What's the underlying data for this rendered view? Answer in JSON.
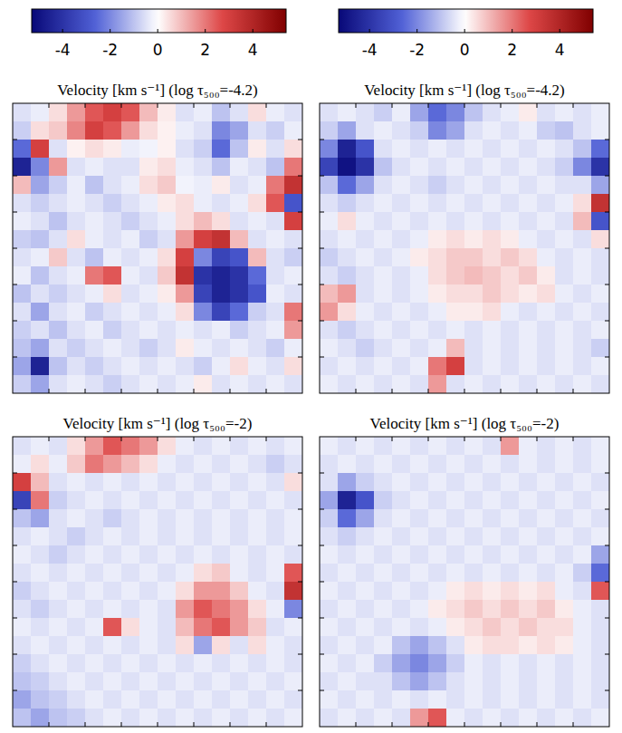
{
  "chart_data": [
    {
      "type": "heatmap",
      "title": "Velocity [km s⁻¹] (log τ₅₀₀=-4.2)",
      "xlim": [
        0,
        16
      ],
      "ylim": [
        0,
        16
      ],
      "xticks": [
        2,
        4,
        6,
        8,
        10,
        12,
        14
      ],
      "yticks": [
        2,
        4,
        6,
        8,
        10,
        12,
        14
      ],
      "tick_labels": false,
      "color_range": [
        -5.3,
        5.4
      ],
      "colorbar_ticks": [
        -4,
        -2,
        0,
        2,
        4
      ],
      "cells": [
        [
          -0.5,
          -0.3,
          0.5,
          1.5,
          2.5,
          3,
          2.5,
          1,
          0.3,
          -0.5,
          -0.3,
          -1,
          -0.5,
          0.5,
          -0.3,
          -0.5
        ],
        [
          -0.8,
          0.5,
          0.8,
          1.8,
          3,
          2.5,
          1.5,
          0.5,
          0.2,
          -0.3,
          -0.5,
          -2,
          -1.5,
          -0.5,
          -0.8,
          -0.3
        ],
        [
          -2.5,
          3,
          -0.5,
          0.2,
          0.5,
          0.3,
          -0.3,
          -0.2,
          0.2,
          -0.5,
          -0.8,
          -2.5,
          -1,
          0.3,
          -0.5,
          0.5
        ],
        [
          -4.5,
          -2,
          1.5,
          -0.5,
          -0.3,
          -0.5,
          -0.5,
          0.3,
          0.5,
          -0.3,
          -0.5,
          -1,
          -0.3,
          -0.5,
          -1,
          2
        ],
        [
          1,
          -1.5,
          -0.8,
          -0.3,
          -1,
          -0.5,
          -0.3,
          0.5,
          0.8,
          -0.2,
          -0.3,
          0.3,
          -0.5,
          -0.3,
          2,
          3.5
        ],
        [
          -0.5,
          -0.8,
          -0.5,
          -0.3,
          -0.5,
          -0.8,
          -0.5,
          -0.3,
          0.3,
          0.5,
          -0.3,
          -0.5,
          -0.3,
          0.5,
          2.5,
          -3
        ],
        [
          -0.3,
          -0.5,
          -1,
          -0.5,
          -0.3,
          -0.5,
          -0.8,
          -0.5,
          -0.3,
          0.5,
          1,
          0.5,
          -0.5,
          -0.3,
          -0.5,
          3
        ],
        [
          -0.8,
          -1,
          -0.5,
          0.5,
          -0.3,
          -0.5,
          -0.3,
          -0.8,
          -0.5,
          1.5,
          3,
          3.5,
          1,
          -0.5,
          -0.3,
          -0.5
        ],
        [
          -0.5,
          -0.3,
          0.8,
          -0.5,
          -1,
          -0.3,
          -0.5,
          -0.3,
          0.5,
          3,
          -2,
          -3.5,
          -3,
          1,
          -0.5,
          -0.8
        ],
        [
          -0.3,
          -1,
          -0.5,
          -0.3,
          2,
          2.5,
          -0.3,
          -0.5,
          0.8,
          3.5,
          -4,
          -4.5,
          -4,
          -2.5,
          -0.5,
          -0.3
        ],
        [
          -1,
          -0.5,
          -0.8,
          -0.5,
          -0.3,
          0.5,
          -0.5,
          -0.3,
          0.3,
          1.5,
          -3.5,
          -4.5,
          -4,
          -3,
          -0.3,
          -0.5
        ],
        [
          -0.5,
          -1.5,
          -0.5,
          -0.3,
          -0.8,
          -0.5,
          -0.3,
          -0.5,
          -0.3,
          0.5,
          -2,
          -3.5,
          -2.5,
          -0.8,
          -0.5,
          2
        ],
        [
          -0.8,
          -0.5,
          -1,
          -0.5,
          -0.3,
          -0.8,
          -0.5,
          -0.3,
          -0.5,
          -0.3,
          -0.5,
          -0.3,
          -0.8,
          -0.5,
          -0.3,
          1.5
        ],
        [
          -1,
          -1.5,
          -0.5,
          -0.8,
          -0.5,
          -0.3,
          -0.5,
          -0.8,
          -0.5,
          0.3,
          -0.3,
          -0.5,
          -0.3,
          -0.5,
          -0.8,
          -0.3
        ],
        [
          -1.5,
          -4.5,
          -1,
          -0.5,
          -0.8,
          -0.5,
          -0.3,
          -0.5,
          -0.3,
          -0.5,
          -0.8,
          -0.3,
          0.5,
          -0.3,
          -0.5,
          0.5
        ],
        [
          -0.8,
          -1.5,
          -0.5,
          -0.3,
          -0.5,
          -0.8,
          -0.5,
          -0.3,
          -0.5,
          -0.3,
          0.3,
          -0.5,
          -0.3,
          -0.5,
          -0.3,
          -0.5
        ]
      ]
    },
    {
      "type": "heatmap",
      "title": "Velocity [km s⁻¹] (log τ₅₀₀=-4.2)",
      "xlim": [
        0,
        16
      ],
      "ylim": [
        0,
        16
      ],
      "xticks": [
        2,
        4,
        6,
        8,
        10,
        12,
        14
      ],
      "yticks": [
        2,
        4,
        6,
        8,
        10,
        12,
        14
      ],
      "tick_labels": false,
      "color_range": [
        -5.3,
        5.4
      ],
      "colorbar_ticks": [
        -4,
        -2,
        0,
        2,
        4
      ],
      "cells": [
        [
          -0.5,
          -0.3,
          -0.5,
          -0.8,
          -0.3,
          -1.5,
          -2.5,
          -2,
          -1,
          -0.5,
          -0.3,
          0.3,
          -0.5,
          -0.3,
          -0.5,
          -0.3
        ],
        [
          -0.8,
          -1.5,
          -0.5,
          -0.3,
          -0.5,
          -0.8,
          -2,
          -1.5,
          -0.5,
          -0.3,
          -0.5,
          -0.3,
          -0.8,
          -1,
          -0.5,
          -0.3
        ],
        [
          -2,
          -4.5,
          -3,
          -0.5,
          -0.3,
          -0.5,
          -0.3,
          -0.5,
          -0.3,
          -0.5,
          -0.3,
          -0.5,
          -0.3,
          -0.5,
          -1,
          -2.5
        ],
        [
          -3.5,
          -5,
          -4,
          -1,
          -0.5,
          -0.3,
          -0.5,
          -0.3,
          -0.5,
          -0.3,
          -0.5,
          -0.3,
          -0.5,
          -0.8,
          -2,
          -4
        ],
        [
          -1,
          -2.5,
          -1.5,
          -0.5,
          -0.3,
          -0.5,
          -0.8,
          -0.5,
          -0.3,
          -0.5,
          -0.3,
          -0.5,
          -0.3,
          -0.5,
          -0.5,
          -1.5
        ],
        [
          -0.5,
          -0.8,
          -0.5,
          -0.3,
          -0.5,
          -0.3,
          -0.5,
          -0.3,
          -0.5,
          -0.3,
          -0.5,
          -0.3,
          -0.5,
          -0.3,
          0.5,
          3.5
        ],
        [
          -0.3,
          0.5,
          -0.3,
          -0.5,
          -0.3,
          -0.5,
          -0.3,
          -0.5,
          -0.3,
          -0.5,
          -0.3,
          -0.5,
          -0.3,
          -0.5,
          1,
          -3
        ],
        [
          -0.5,
          -0.3,
          -0.5,
          -0.3,
          -0.5,
          -0.3,
          0.3,
          0.5,
          0.3,
          0.5,
          0.3,
          -0.3,
          -0.5,
          -0.3,
          -0.5,
          0.5
        ],
        [
          -0.8,
          -0.5,
          -0.3,
          -0.5,
          -0.3,
          0.3,
          0.5,
          0.8,
          0.8,
          0.5,
          0.8,
          0.5,
          -0.3,
          -0.5,
          -0.3,
          -0.5
        ],
        [
          -0.5,
          -0.8,
          -0.5,
          -0.3,
          -0.5,
          -0.3,
          0.5,
          0.8,
          1,
          0.8,
          0.5,
          0.8,
          0.3,
          -0.5,
          -0.3,
          -0.5
        ],
        [
          1,
          1.5,
          -0.5,
          -0.3,
          -0.5,
          -0.3,
          0.3,
          0.5,
          0.5,
          0.8,
          0.5,
          0.3,
          0.5,
          -0.3,
          -0.5,
          -0.3
        ],
        [
          1.5,
          0.5,
          -0.3,
          -0.5,
          -0.3,
          -0.5,
          -0.3,
          0.3,
          0.3,
          0.5,
          -0.3,
          -0.5,
          -0.3,
          -0.5,
          -0.3,
          -0.5
        ],
        [
          -0.5,
          -0.8,
          -0.5,
          -0.3,
          -0.5,
          -0.3,
          -0.5,
          -0.3,
          -0.5,
          -0.3,
          -0.5,
          -0.3,
          -0.5,
          -0.3,
          -0.5,
          -0.3
        ],
        [
          -0.3,
          -0.5,
          -0.8,
          -0.5,
          -0.3,
          -0.5,
          -0.3,
          1,
          -0.5,
          -0.3,
          -0.5,
          -0.3,
          -0.5,
          -0.3,
          -0.5,
          -0.8
        ],
        [
          -0.5,
          -0.3,
          -0.5,
          -0.3,
          -0.5,
          -0.3,
          2,
          3,
          -0.5,
          -0.3,
          -0.5,
          -0.3,
          -0.5,
          -0.3,
          -0.5,
          -0.3
        ],
        [
          -0.3,
          -0.5,
          -0.3,
          -0.5,
          -0.3,
          -0.5,
          1.5,
          -0.5,
          -0.3,
          -0.5,
          -0.3,
          -0.5,
          -0.3,
          -0.5,
          -0.3,
          -0.5
        ]
      ]
    },
    {
      "type": "heatmap",
      "title": "Velocity [km s⁻¹] (log τ₅₀₀=-2)",
      "xlim": [
        0,
        16
      ],
      "ylim": [
        0,
        16
      ],
      "xticks": [
        2,
        4,
        6,
        8,
        10,
        12,
        14
      ],
      "yticks": [
        2,
        4,
        6,
        8,
        10,
        12,
        14
      ],
      "tick_labels": false,
      "color_range": [
        -5.3,
        5.4
      ],
      "cells": [
        [
          -0.5,
          -0.3,
          -0.5,
          0.5,
          1.5,
          2.5,
          2,
          1.5,
          0.5,
          -0.3,
          -0.5,
          -0.3,
          -0.5,
          -0.3,
          -0.5,
          -0.3
        ],
        [
          -0.3,
          0.5,
          -0.3,
          0.8,
          2,
          1.5,
          1,
          0.5,
          -0.3,
          -0.5,
          -0.3,
          -0.5,
          -0.3,
          -0.5,
          -0.8,
          -0.5
        ],
        [
          3,
          1,
          -0.5,
          -0.3,
          -0.5,
          -0.3,
          -0.5,
          -0.3,
          -0.5,
          -0.3,
          -0.5,
          -0.3,
          -0.5,
          -0.3,
          -0.5,
          0.5
        ],
        [
          -3.5,
          2,
          -0.8,
          -0.5,
          -0.3,
          -0.5,
          -0.3,
          -0.5,
          -0.3,
          -0.5,
          -0.3,
          -0.5,
          -0.3,
          -0.5,
          -0.3,
          -0.5
        ],
        [
          -1,
          -1.5,
          -0.5,
          -0.3,
          -0.5,
          -0.8,
          -0.5,
          -0.3,
          -0.5,
          -0.3,
          -0.5,
          -0.3,
          -0.5,
          -0.3,
          -0.5,
          -0.3
        ],
        [
          -0.5,
          -0.3,
          -0.5,
          -0.8,
          -0.5,
          -0.3,
          -0.5,
          -0.3,
          -0.5,
          -0.3,
          -0.5,
          -0.3,
          -0.5,
          -0.3,
          -0.5,
          -0.3
        ],
        [
          -0.3,
          -0.5,
          -0.8,
          -0.5,
          -0.3,
          -0.5,
          -0.3,
          -0.5,
          -0.3,
          -0.5,
          -0.3,
          -0.5,
          -0.3,
          -0.5,
          -0.3,
          -0.5
        ],
        [
          -0.5,
          -0.3,
          -0.5,
          -0.3,
          -0.5,
          -0.3,
          -0.5,
          -0.3,
          -0.5,
          -0.3,
          0.5,
          0.8,
          -0.3,
          -0.5,
          -0.3,
          2.5
        ],
        [
          -0.8,
          -0.5,
          -0.3,
          -0.5,
          -0.3,
          -0.5,
          -0.3,
          -0.5,
          -0.3,
          0.5,
          1.5,
          1.5,
          0.8,
          -0.3,
          -0.5,
          3.5
        ],
        [
          -0.5,
          -0.8,
          -0.5,
          -0.3,
          -0.5,
          -0.3,
          -0.5,
          -0.3,
          -0.5,
          1.5,
          2.5,
          2,
          1.5,
          0.5,
          -0.3,
          -2
        ],
        [
          -0.3,
          -0.5,
          -0.3,
          -0.5,
          -0.3,
          2.5,
          0.5,
          -0.3,
          -0.5,
          1,
          2,
          2.5,
          1.5,
          0.8,
          -0.5,
          -0.3
        ],
        [
          -0.5,
          -0.3,
          -0.5,
          -0.3,
          -0.5,
          -0.3,
          -0.5,
          -0.3,
          -0.5,
          0.5,
          -1.5,
          0.5,
          -0.5,
          0.5,
          -0.3,
          -0.5
        ],
        [
          -0.8,
          -0.5,
          -0.3,
          -0.5,
          -0.3,
          -0.5,
          -0.3,
          -0.5,
          -0.3,
          -0.5,
          -0.3,
          -0.5,
          -0.3,
          -0.5,
          -0.3,
          -0.5
        ],
        [
          -1,
          -0.8,
          -0.5,
          -0.3,
          -0.5,
          -0.3,
          -0.5,
          -0.3,
          -0.5,
          -0.3,
          -0.5,
          -0.3,
          -0.5,
          -0.3,
          -0.5,
          -0.3
        ],
        [
          -1.5,
          -1,
          -0.8,
          -0.5,
          -0.3,
          -0.5,
          -0.3,
          -0.5,
          -0.3,
          -0.5,
          -0.3,
          -0.5,
          -0.3,
          -0.5,
          -0.3,
          -0.5
        ],
        [
          -1,
          -1.5,
          -1,
          -0.8,
          -0.5,
          -0.3,
          -0.5,
          -0.3,
          -0.5,
          -0.3,
          -0.5,
          -0.3,
          -0.5,
          -0.3,
          -0.5,
          -0.3
        ]
      ]
    },
    {
      "type": "heatmap",
      "title": "Velocity [km s⁻¹] (log τ₅₀₀=-2)",
      "xlim": [
        0,
        16
      ],
      "ylim": [
        0,
        16
      ],
      "xticks": [
        2,
        4,
        6,
        8,
        10,
        12,
        14
      ],
      "yticks": [
        2,
        4,
        6,
        8,
        10,
        12,
        14
      ],
      "tick_labels": false,
      "color_range": [
        -5.3,
        5.4
      ],
      "cells": [
        [
          -0.3,
          -0.5,
          -0.3,
          -0.5,
          -0.3,
          -0.5,
          -0.3,
          -0.5,
          -0.3,
          -0.5,
          1.5,
          -0.3,
          -0.5,
          -0.3,
          -0.5,
          -0.3
        ],
        [
          -0.5,
          -0.3,
          -0.5,
          -0.3,
          -0.5,
          -0.3,
          -0.5,
          -0.3,
          -0.5,
          -0.3,
          -0.5,
          -0.3,
          -0.5,
          -0.3,
          -0.5,
          -0.3
        ],
        [
          -0.5,
          -1.5,
          -0.8,
          -0.5,
          -0.3,
          -0.5,
          -0.3,
          -0.5,
          -0.3,
          -0.5,
          -0.3,
          -0.5,
          -0.3,
          -0.5,
          -0.3,
          -0.5
        ],
        [
          -1.5,
          -4.5,
          -3,
          -0.8,
          -0.5,
          -0.3,
          -0.5,
          -0.3,
          -0.5,
          -0.3,
          -0.5,
          -0.3,
          -0.5,
          -0.3,
          -0.5,
          -0.3
        ],
        [
          -0.8,
          -2.5,
          -1.5,
          -0.5,
          -0.3,
          -0.5,
          -0.3,
          -0.5,
          -0.3,
          -0.5,
          -0.3,
          -0.5,
          -0.3,
          -0.5,
          -0.3,
          -0.5
        ],
        [
          -0.5,
          -0.8,
          -0.5,
          -0.3,
          -0.5,
          -0.3,
          -0.5,
          -0.3,
          -0.5,
          -0.3,
          -0.5,
          -0.3,
          -0.5,
          -0.3,
          -0.5,
          -0.3
        ],
        [
          -0.3,
          -0.5,
          -0.3,
          -0.5,
          -0.3,
          -0.5,
          -0.3,
          -0.5,
          -0.3,
          -0.5,
          -0.3,
          -0.5,
          -0.3,
          -0.5,
          -0.3,
          -1.5
        ],
        [
          -0.5,
          -0.3,
          -0.5,
          -0.3,
          -0.5,
          -0.3,
          -0.5,
          -0.3,
          -0.5,
          -0.3,
          -0.5,
          -0.3,
          -0.5,
          -0.3,
          -0.8,
          -2.5
        ],
        [
          -0.3,
          -0.5,
          -0.3,
          -0.5,
          -0.3,
          -0.5,
          -0.3,
          0.3,
          0.5,
          0.3,
          0.5,
          0.3,
          0.5,
          -0.3,
          -0.5,
          2.5
        ],
        [
          -0.5,
          -0.3,
          -0.5,
          -0.3,
          -0.5,
          -0.3,
          0.3,
          0.5,
          0.8,
          0.5,
          0.8,
          0.5,
          0.8,
          0.3,
          -0.3,
          -0.5
        ],
        [
          -0.3,
          -0.5,
          -0.3,
          -0.5,
          -0.3,
          -0.5,
          -0.3,
          0.3,
          0.5,
          0.8,
          0.5,
          0.8,
          0.5,
          0.5,
          -0.3,
          -0.5
        ],
        [
          -0.5,
          -0.3,
          -0.5,
          -0.3,
          -1,
          -1.5,
          -1,
          -0.5,
          0.3,
          0.5,
          0.5,
          0.3,
          0.5,
          0.3,
          -0.3,
          -0.5
        ],
        [
          -0.3,
          -0.5,
          -0.3,
          -0.8,
          -1.5,
          -2,
          -1.5,
          -0.8,
          -0.3,
          -0.5,
          -0.3,
          -0.5,
          -0.3,
          -0.5,
          -0.3,
          -0.5
        ],
        [
          -0.5,
          -0.3,
          -0.5,
          -0.5,
          -1,
          -1.5,
          -1,
          -0.5,
          -0.3,
          -0.5,
          -0.3,
          -0.5,
          -0.3,
          -0.5,
          -0.3,
          -0.5
        ],
        [
          -0.3,
          -0.5,
          -0.3,
          -0.5,
          -0.3,
          -0.5,
          -0.3,
          -0.5,
          -0.3,
          -0.5,
          -0.3,
          -0.5,
          -0.3,
          -0.5,
          -0.3,
          -0.5
        ],
        [
          -0.5,
          -0.3,
          -0.5,
          -0.3,
          -0.5,
          1.5,
          2.5,
          -0.3,
          -0.5,
          -0.3,
          -0.5,
          -0.3,
          -0.5,
          -0.3,
          -0.5,
          -0.3
        ]
      ]
    }
  ]
}
